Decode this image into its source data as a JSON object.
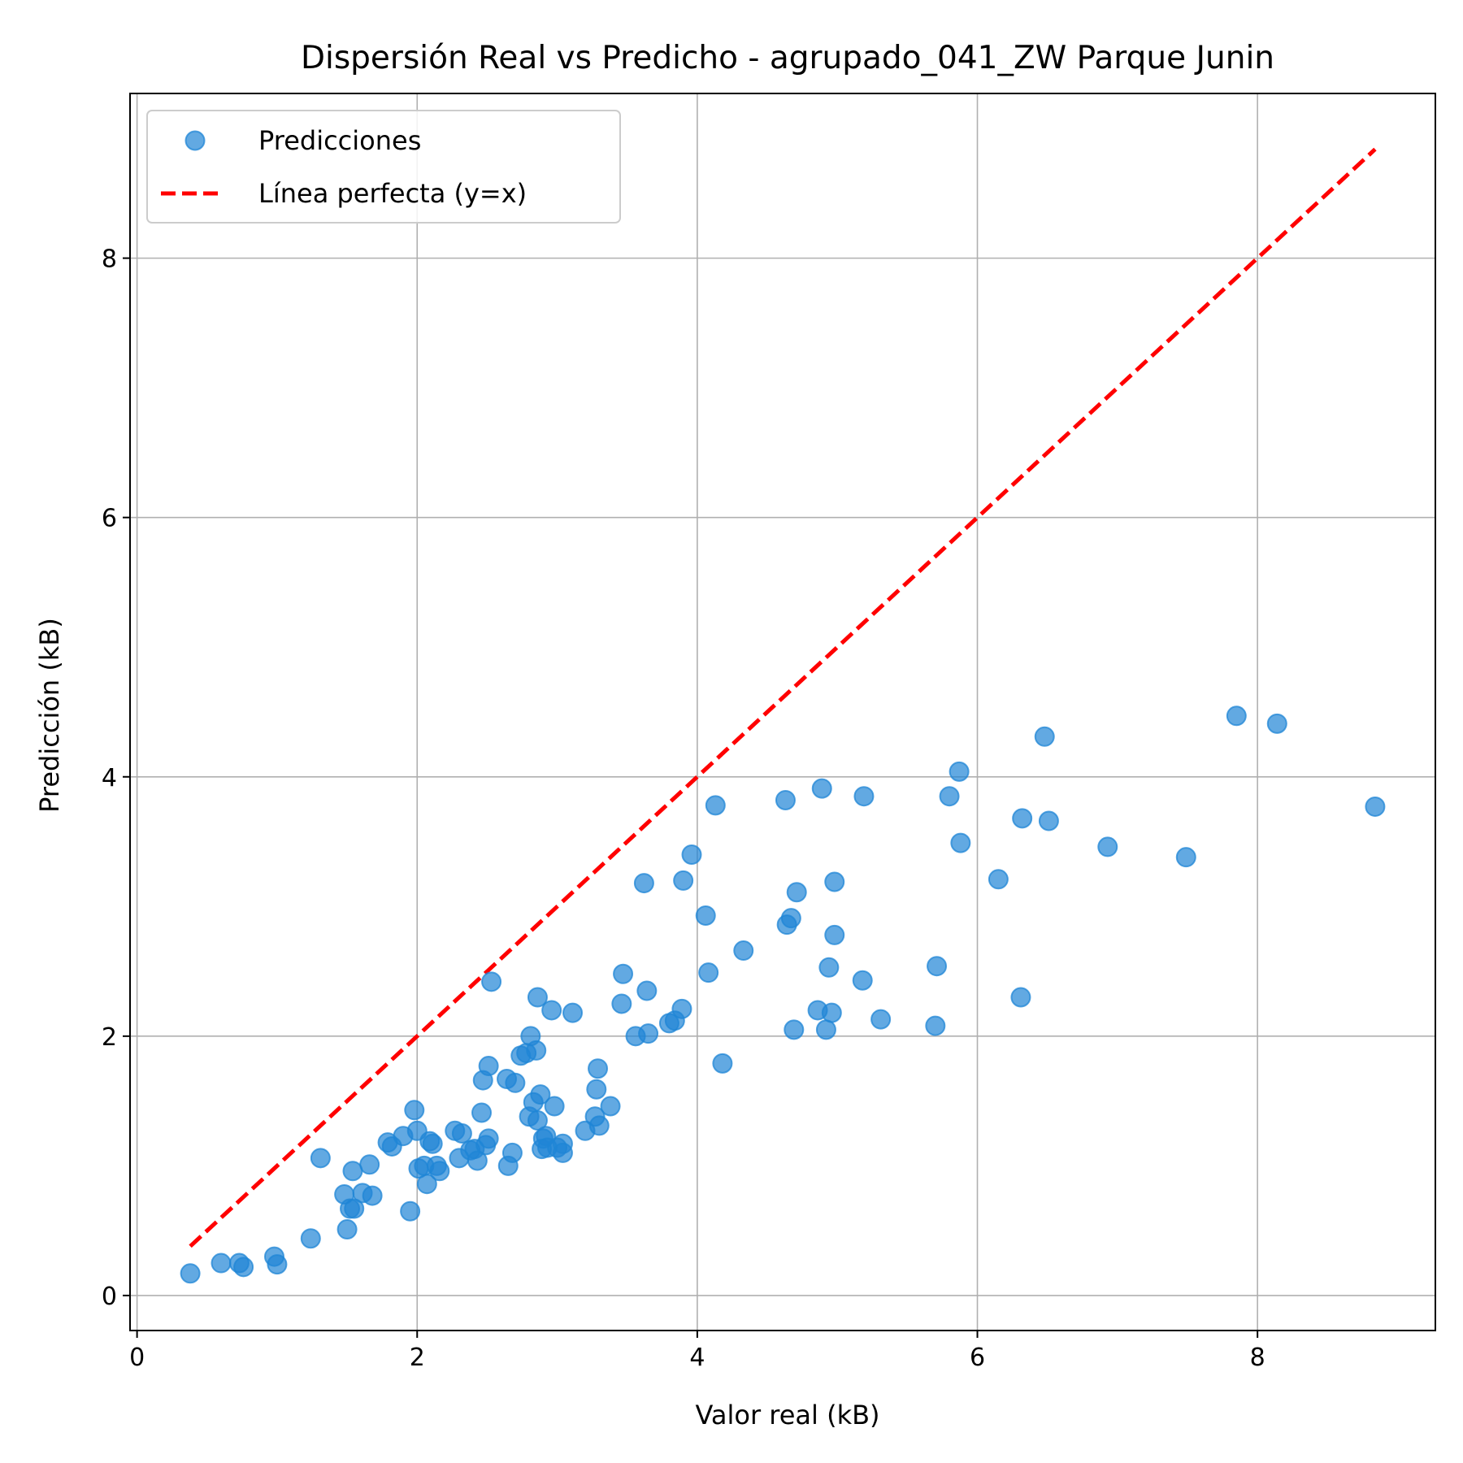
{
  "chart_data": {
    "type": "scatter",
    "title": "Dispersión Real vs Predicho - agrupado_041_ZW Parque Junin",
    "xlabel": "Valor real (kB)",
    "ylabel": "Predicción (kB)",
    "xlim": [
      -0.05,
      9.27
    ],
    "ylim": [
      -0.27,
      9.27
    ],
    "xticks": [
      0,
      2,
      4,
      6,
      8
    ],
    "yticks": [
      0,
      2,
      4,
      6,
      8
    ],
    "xtick_labels": [
      "0",
      "2",
      "4",
      "6",
      "8"
    ],
    "ytick_labels": [
      "0",
      "2",
      "4",
      "6",
      "8"
    ],
    "grid": true,
    "legend": {
      "position": "upper-left",
      "entries": [
        {
          "label": "Predicciones",
          "kind": "marker",
          "color": "#1f85d6"
        },
        {
          "label": "Línea perfecta (y=x)",
          "kind": "dashed-line",
          "color": "#ff0000"
        }
      ]
    },
    "series": [
      {
        "name": "Predicciones",
        "kind": "scatter",
        "color": "#1f85d6",
        "alpha": 0.7,
        "points": [
          [
            0.38,
            0.17
          ],
          [
            0.6,
            0.25
          ],
          [
            0.73,
            0.25
          ],
          [
            0.76,
            0.22
          ],
          [
            0.98,
            0.3
          ],
          [
            1.0,
            0.24
          ],
          [
            1.24,
            0.44
          ],
          [
            1.31,
            1.06
          ],
          [
            1.48,
            0.78
          ],
          [
            1.5,
            0.51
          ],
          [
            1.52,
            0.67
          ],
          [
            1.54,
            0.96
          ],
          [
            1.55,
            0.67
          ],
          [
            1.61,
            0.79
          ],
          [
            1.66,
            1.01
          ],
          [
            1.68,
            0.77
          ],
          [
            1.79,
            1.18
          ],
          [
            1.82,
            1.15
          ],
          [
            1.9,
            1.23
          ],
          [
            1.95,
            0.65
          ],
          [
            1.98,
            1.43
          ],
          [
            2.0,
            1.27
          ],
          [
            2.01,
            0.98
          ],
          [
            2.05,
            1.0
          ],
          [
            2.07,
            0.86
          ],
          [
            2.09,
            1.19
          ],
          [
            2.11,
            1.17
          ],
          [
            2.14,
            1.0
          ],
          [
            2.16,
            0.96
          ],
          [
            2.27,
            1.27
          ],
          [
            2.3,
            1.06
          ],
          [
            2.32,
            1.25
          ],
          [
            2.38,
            1.12
          ],
          [
            2.41,
            1.13
          ],
          [
            2.43,
            1.04
          ],
          [
            2.46,
            1.41
          ],
          [
            2.47,
            1.66
          ],
          [
            2.49,
            1.16
          ],
          [
            2.51,
            1.21
          ],
          [
            2.51,
            1.77
          ],
          [
            2.53,
            2.42
          ],
          [
            2.64,
            1.67
          ],
          [
            2.65,
            1.0
          ],
          [
            2.68,
            1.1
          ],
          [
            2.7,
            1.64
          ],
          [
            2.74,
            1.85
          ],
          [
            2.78,
            1.87
          ],
          [
            2.8,
            1.38
          ],
          [
            2.81,
            2.0
          ],
          [
            2.83,
            1.49
          ],
          [
            2.85,
            1.89
          ],
          [
            2.86,
            1.35
          ],
          [
            2.86,
            2.3
          ],
          [
            2.88,
            1.55
          ],
          [
            2.89,
            1.13
          ],
          [
            2.9,
            1.21
          ],
          [
            2.92,
            1.23
          ],
          [
            2.93,
            1.14
          ],
          [
            2.96,
            2.2
          ],
          [
            2.98,
            1.46
          ],
          [
            3.0,
            1.14
          ],
          [
            3.04,
            1.17
          ],
          [
            3.04,
            1.1
          ],
          [
            3.11,
            2.18
          ],
          [
            3.2,
            1.27
          ],
          [
            3.27,
            1.38
          ],
          [
            3.28,
            1.59
          ],
          [
            3.29,
            1.75
          ],
          [
            3.3,
            1.31
          ],
          [
            3.38,
            1.46
          ],
          [
            3.46,
            2.25
          ],
          [
            3.47,
            2.48
          ],
          [
            3.56,
            2.0
          ],
          [
            3.62,
            3.18
          ],
          [
            3.64,
            2.35
          ],
          [
            3.65,
            2.02
          ],
          [
            3.8,
            2.1
          ],
          [
            3.84,
            2.12
          ],
          [
            3.89,
            2.21
          ],
          [
            3.9,
            3.2
          ],
          [
            3.96,
            3.4
          ],
          [
            4.06,
            2.93
          ],
          [
            4.08,
            2.49
          ],
          [
            4.13,
            3.78
          ],
          [
            4.18,
            1.79
          ],
          [
            4.33,
            2.66
          ],
          [
            4.63,
            3.82
          ],
          [
            4.64,
            2.86
          ],
          [
            4.67,
            2.91
          ],
          [
            4.69,
            2.05
          ],
          [
            4.71,
            3.11
          ],
          [
            4.86,
            2.2
          ],
          [
            4.89,
            3.91
          ],
          [
            4.92,
            2.05
          ],
          [
            4.94,
            2.53
          ],
          [
            4.96,
            2.18
          ],
          [
            4.98,
            3.19
          ],
          [
            4.98,
            2.78
          ],
          [
            5.18,
            2.43
          ],
          [
            5.19,
            3.85
          ],
          [
            5.31,
            2.13
          ],
          [
            5.7,
            2.08
          ],
          [
            5.71,
            2.54
          ],
          [
            5.8,
            3.85
          ],
          [
            5.87,
            4.04
          ],
          [
            5.88,
            3.49
          ],
          [
            6.15,
            3.21
          ],
          [
            6.31,
            2.3
          ],
          [
            6.32,
            3.68
          ],
          [
            6.48,
            4.31
          ],
          [
            6.51,
            3.66
          ],
          [
            6.93,
            3.46
          ],
          [
            7.49,
            3.38
          ],
          [
            7.85,
            4.47
          ],
          [
            8.14,
            4.41
          ],
          [
            8.84,
            3.77
          ]
        ]
      },
      {
        "name": "Línea perfecta (y=x)",
        "kind": "line",
        "color": "#ff0000",
        "dashed": true,
        "points": [
          [
            0.38,
            0.38
          ],
          [
            8.84,
            8.84
          ]
        ]
      }
    ]
  }
}
